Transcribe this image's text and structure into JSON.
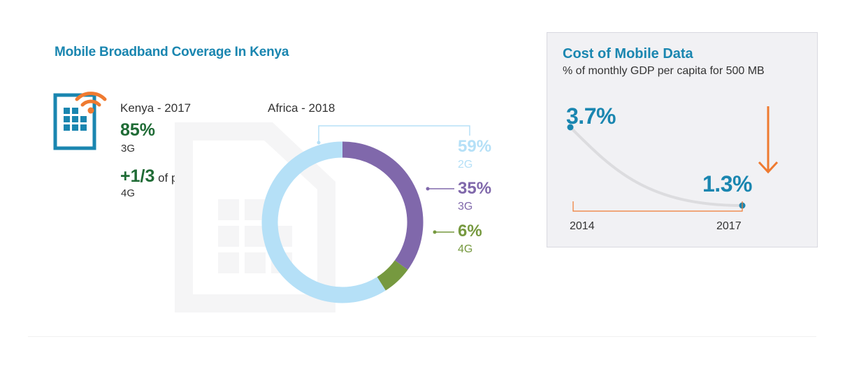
{
  "left_panel": {
    "title": "Mobile Broadband Coverage In Kenya",
    "kenya": {
      "heading": "Kenya - 2017",
      "stat1_value": "85%",
      "stat1_label": "3G",
      "stat2_value": "+1/3",
      "stat2_suffix": " of population",
      "stat2_label": "4G"
    },
    "icon": "sim-card-wifi-icon"
  },
  "colors": {
    "g2": "#b5e0f7",
    "g3": "#8068ab",
    "g4": "#76993f",
    "accent_blue": "#1a86b0",
    "accent_green": "#1f6b35",
    "orange": "#ef7a30"
  },
  "chart_data": [
    {
      "type": "pie",
      "title": "Africa - 2018",
      "categories": [
        "2G",
        "3G",
        "4G"
      ],
      "values": [
        59,
        35,
        6
      ],
      "value_labels": [
        "59%",
        "35%",
        "6%"
      ]
    },
    {
      "type": "line",
      "title": "Cost of Mobile Data",
      "subtitle": "% of monthly GDP per capita for 500 MB",
      "x": [
        "2014",
        "2017"
      ],
      "values": [
        3.7,
        1.3
      ],
      "value_labels": [
        "3.7%",
        "1.3%"
      ]
    }
  ]
}
